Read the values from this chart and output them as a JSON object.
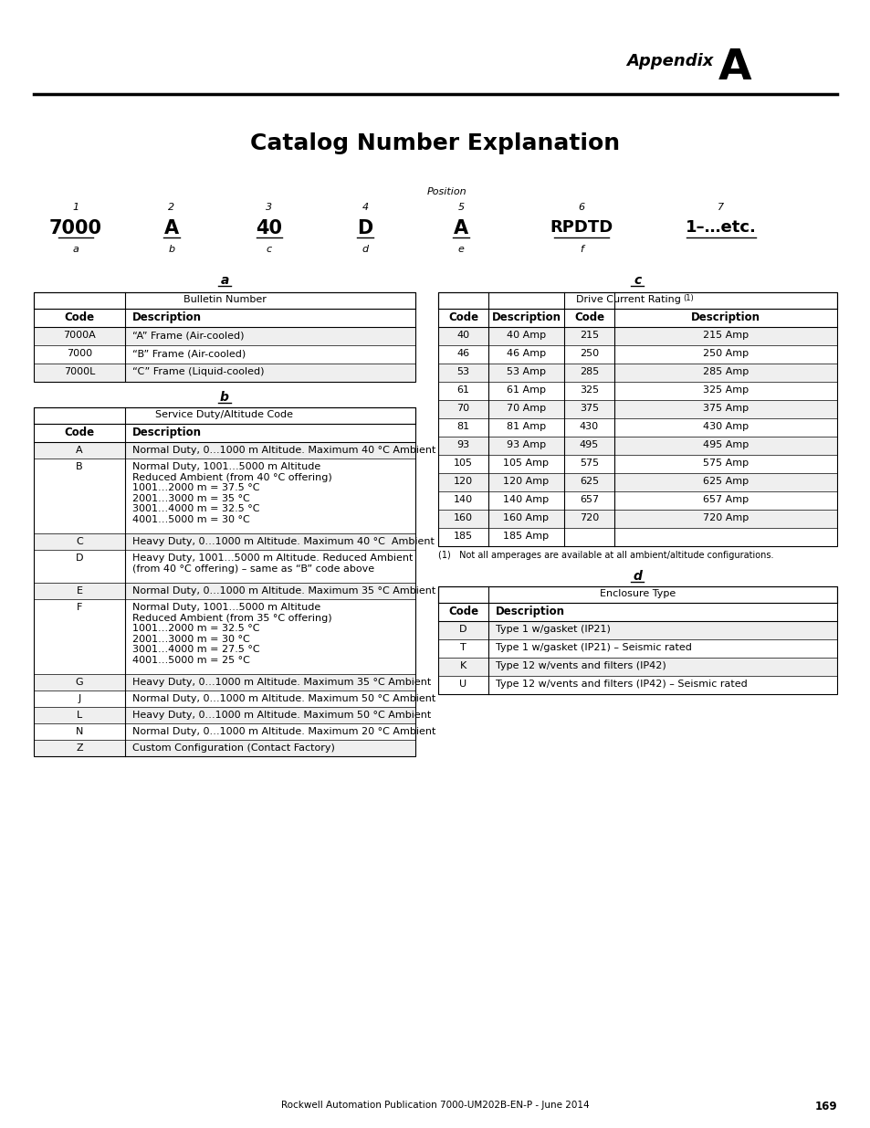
{
  "title": "Catalog Number Explanation",
  "appendix_label": "Appendix",
  "appendix_letter": "A",
  "position_label": "Position",
  "positions": [
    "1",
    "2",
    "3",
    "4",
    "5",
    "6",
    "7"
  ],
  "catalog_codes": [
    "7000",
    "A",
    "40",
    "D",
    "A",
    "RPDTD",
    "1–…etc."
  ],
  "catalog_letters": [
    "a",
    "b",
    "c",
    "d",
    "e",
    "f",
    ""
  ],
  "section_a_title": "Bulletin Number",
  "section_a_rows": [
    [
      "7000A",
      "“A” Frame (Air-cooled)"
    ],
    [
      "7000",
      "“B” Frame (Air-cooled)"
    ],
    [
      "7000L",
      "“C” Frame (Liquid-cooled)"
    ]
  ],
  "section_b_title": "Service Duty/Altitude Code",
  "section_b_rows": [
    [
      "A",
      "Normal Duty, 0…1000 m Altitude. Maximum 40 °C Ambient"
    ],
    [
      "B",
      "Normal Duty, 1001…5000 m Altitude\nReduced Ambient (from 40 °C offering)\n1001…2000 m = 37.5 °C\n2001…3000 m = 35 °C\n3001…4000 m = 32.5 °C\n4001…5000 m = 30 °C"
    ],
    [
      "C",
      "Heavy Duty, 0…1000 m Altitude. Maximum 40 °C  Ambient"
    ],
    [
      "D",
      "Heavy Duty, 1001…5000 m Altitude. Reduced Ambient\n(from 40 °C offering) – same as “B” code above"
    ],
    [
      "E",
      "Normal Duty, 0…1000 m Altitude. Maximum 35 °C Ambient"
    ],
    [
      "F",
      "Normal Duty, 1001…5000 m Altitude\nReduced Ambient (from 35 °C offering)\n1001…2000 m = 32.5 °C\n2001…3000 m = 30 °C\n3001…4000 m = 27.5 °C\n4001…5000 m = 25 °C"
    ],
    [
      "G",
      "Heavy Duty, 0…1000 m Altitude. Maximum 35 °C Ambient"
    ],
    [
      "J",
      "Normal Duty, 0…1000 m Altitude. Maximum 50 °C Ambient"
    ],
    [
      "L",
      "Heavy Duty, 0…1000 m Altitude. Maximum 50 °C Ambient"
    ],
    [
      "N",
      "Normal Duty, 0…1000 m Altitude. Maximum 20 °C Ambient"
    ],
    [
      "Z",
      "Custom Configuration (Contact Factory)"
    ]
  ],
  "section_c_title": "Drive Current Rating",
  "section_c_footnote_marker": "(1)",
  "section_c_rows": [
    [
      "40",
      "40 Amp",
      "215",
      "215 Amp"
    ],
    [
      "46",
      "46 Amp",
      "250",
      "250 Amp"
    ],
    [
      "53",
      "53 Amp",
      "285",
      "285 Amp"
    ],
    [
      "61",
      "61 Amp",
      "325",
      "325 Amp"
    ],
    [
      "70",
      "70 Amp",
      "375",
      "375 Amp"
    ],
    [
      "81",
      "81 Amp",
      "430",
      "430 Amp"
    ],
    [
      "93",
      "93 Amp",
      "495",
      "495 Amp"
    ],
    [
      "105",
      "105 Amp",
      "575",
      "575 Amp"
    ],
    [
      "120",
      "120 Amp",
      "625",
      "625 Amp"
    ],
    [
      "140",
      "140 Amp",
      "657",
      "657 Amp"
    ],
    [
      "160",
      "160 Amp",
      "720",
      "720 Amp"
    ],
    [
      "185",
      "185 Amp",
      "",
      ""
    ]
  ],
  "section_c_footnote": "(1)   Not all amperages are available at all ambient/altitude configurations.",
  "section_d_title": "Enclosure Type",
  "section_d_rows": [
    [
      "D",
      "Type 1 w/gasket (IP21)"
    ],
    [
      "T",
      "Type 1 w/gasket (IP21) – Seismic rated"
    ],
    [
      "K",
      "Type 12 w/vents and filters (IP42)"
    ],
    [
      "U",
      "Type 12 w/vents and filters (IP42) – Seismic rated"
    ]
  ],
  "footer": "Rockwell Automation Publication 7000-UM202B-EN-P - June 2014",
  "page_number": "169",
  "bg_color": "#ffffff",
  "row_alt_bg": "#efefef",
  "row_bg": "#ffffff"
}
